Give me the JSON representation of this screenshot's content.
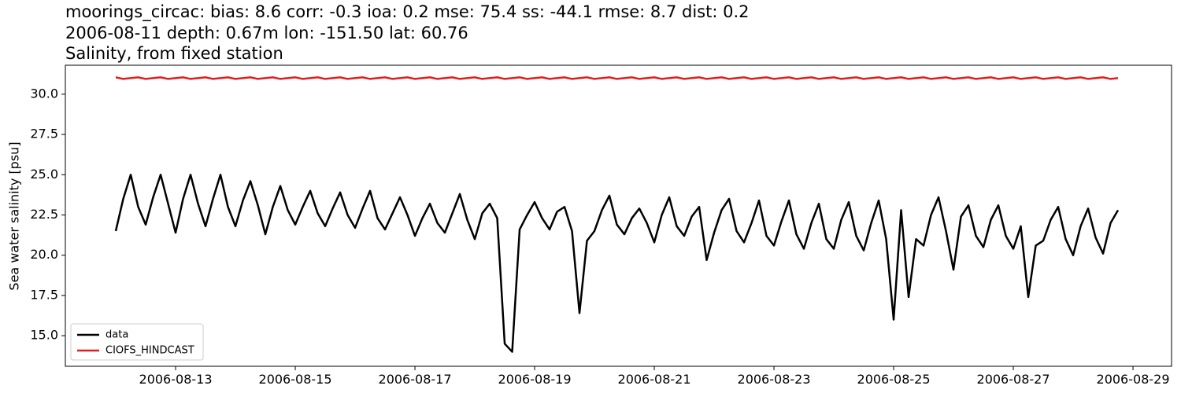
{
  "chart_data": {
    "type": "line",
    "title": "moorings_circac: bias: 8.6  corr: -0.3  ioa: 0.2  mse: 75.4  ss: -44.1  rmse: 8.7  dist: 0.2",
    "subtitle": "2006-08-11 depth: 0.67m lon: -151.50 lat: 60.76",
    "subtitle2": "Salinity, from fixed station",
    "y_label": "Sea water salinity [psu]",
    "legend": "lower left",
    "x": [
      "2006-08-12T00:00",
      "2006-08-12T03:00",
      "2006-08-12T06:00",
      "2006-08-12T09:00",
      "2006-08-12T12:00",
      "2006-08-12T15:00",
      "2006-08-12T18:00",
      "2006-08-12T21:00",
      "2006-08-13T00:00",
      "2006-08-13T03:00",
      "2006-08-13T06:00",
      "2006-08-13T09:00",
      "2006-08-13T12:00",
      "2006-08-13T15:00",
      "2006-08-13T18:00",
      "2006-08-13T21:00",
      "2006-08-14T00:00",
      "2006-08-14T03:00",
      "2006-08-14T06:00",
      "2006-08-14T09:00",
      "2006-08-14T12:00",
      "2006-08-14T15:00",
      "2006-08-14T18:00",
      "2006-08-14T21:00",
      "2006-08-15T00:00",
      "2006-08-15T03:00",
      "2006-08-15T06:00",
      "2006-08-15T09:00",
      "2006-08-15T12:00",
      "2006-08-15T15:00",
      "2006-08-15T18:00",
      "2006-08-15T21:00",
      "2006-08-16T00:00",
      "2006-08-16T03:00",
      "2006-08-16T06:00",
      "2006-08-16T09:00",
      "2006-08-16T12:00",
      "2006-08-16T15:00",
      "2006-08-16T18:00",
      "2006-08-16T21:00",
      "2006-08-17T00:00",
      "2006-08-17T03:00",
      "2006-08-17T06:00",
      "2006-08-17T09:00",
      "2006-08-17T12:00",
      "2006-08-17T15:00",
      "2006-08-17T18:00",
      "2006-08-17T21:00",
      "2006-08-18T00:00",
      "2006-08-18T03:00",
      "2006-08-18T06:00",
      "2006-08-18T09:00",
      "2006-08-18T12:00",
      "2006-08-18T15:00",
      "2006-08-18T18:00",
      "2006-08-18T21:00",
      "2006-08-19T00:00",
      "2006-08-19T03:00",
      "2006-08-19T06:00",
      "2006-08-19T09:00",
      "2006-08-19T12:00",
      "2006-08-19T15:00",
      "2006-08-19T18:00",
      "2006-08-19T21:00",
      "2006-08-20T00:00",
      "2006-08-20T03:00",
      "2006-08-20T06:00",
      "2006-08-20T09:00",
      "2006-08-20T12:00",
      "2006-08-20T15:00",
      "2006-08-20T18:00",
      "2006-08-20T21:00",
      "2006-08-21T00:00",
      "2006-08-21T03:00",
      "2006-08-21T06:00",
      "2006-08-21T09:00",
      "2006-08-21T12:00",
      "2006-08-21T15:00",
      "2006-08-21T18:00",
      "2006-08-21T21:00",
      "2006-08-22T00:00",
      "2006-08-22T03:00",
      "2006-08-22T06:00",
      "2006-08-22T09:00",
      "2006-08-22T12:00",
      "2006-08-22T15:00",
      "2006-08-22T18:00",
      "2006-08-22T21:00",
      "2006-08-23T00:00",
      "2006-08-23T03:00",
      "2006-08-23T06:00",
      "2006-08-23T09:00",
      "2006-08-23T12:00",
      "2006-08-23T15:00",
      "2006-08-23T18:00",
      "2006-08-23T21:00",
      "2006-08-24T00:00",
      "2006-08-24T03:00",
      "2006-08-24T06:00",
      "2006-08-24T09:00",
      "2006-08-24T12:00",
      "2006-08-24T15:00",
      "2006-08-24T18:00",
      "2006-08-24T21:00",
      "2006-08-25T00:00",
      "2006-08-25T03:00",
      "2006-08-25T06:00",
      "2006-08-25T09:00",
      "2006-08-25T12:00",
      "2006-08-25T15:00",
      "2006-08-25T18:00",
      "2006-08-25T21:00",
      "2006-08-26T00:00",
      "2006-08-26T03:00",
      "2006-08-26T06:00",
      "2006-08-26T09:00",
      "2006-08-26T12:00",
      "2006-08-26T15:00",
      "2006-08-26T18:00",
      "2006-08-26T21:00",
      "2006-08-27T00:00",
      "2006-08-27T03:00",
      "2006-08-27T06:00",
      "2006-08-27T09:00",
      "2006-08-27T12:00",
      "2006-08-27T15:00",
      "2006-08-27T18:00",
      "2006-08-27T21:00",
      "2006-08-28T00:00",
      "2006-08-28T03:00",
      "2006-08-28T06:00",
      "2006-08-28T09:00",
      "2006-08-28T12:00",
      "2006-08-28T15:00",
      "2006-08-28T18:00"
    ],
    "series": [
      {
        "name": "data",
        "color": "#000000",
        "values": [
          21.5,
          23.5,
          25.0,
          23.0,
          21.9,
          23.6,
          25.0,
          23.2,
          21.4,
          23.5,
          25.0,
          23.2,
          21.8,
          23.5,
          25.0,
          23.0,
          21.8,
          23.4,
          24.6,
          23.1,
          21.3,
          23.0,
          24.3,
          22.8,
          21.9,
          23.0,
          24.0,
          22.6,
          21.8,
          22.9,
          23.9,
          22.5,
          21.7,
          22.9,
          24.0,
          22.3,
          21.6,
          22.6,
          23.6,
          22.5,
          21.2,
          22.3,
          23.2,
          22.0,
          21.4,
          22.6,
          23.8,
          22.2,
          21.0,
          22.6,
          23.2,
          22.3,
          14.5,
          14.0,
          21.6,
          22.5,
          23.3,
          22.3,
          21.6,
          22.7,
          23.0,
          21.5,
          16.4,
          20.9,
          21.5,
          22.8,
          23.7,
          21.9,
          21.3,
          22.3,
          22.9,
          22.0,
          20.8,
          22.5,
          23.6,
          21.8,
          21.2,
          22.4,
          23.0,
          19.7,
          21.4,
          22.8,
          23.5,
          21.5,
          20.8,
          22.0,
          23.4,
          21.2,
          20.6,
          22.1,
          23.4,
          21.3,
          20.4,
          22.0,
          23.2,
          21.0,
          20.4,
          22.2,
          23.3,
          21.2,
          20.3,
          22.0,
          23.4,
          21.0,
          16.0,
          22.8,
          17.4,
          21.0,
          20.6,
          22.5,
          23.6,
          21.5,
          19.1,
          22.4,
          23.1,
          21.2,
          20.5,
          22.2,
          23.1,
          21.2,
          20.4,
          21.8,
          17.4,
          20.6,
          20.9,
          22.2,
          23.0,
          21.0,
          20.0,
          21.8,
          22.9,
          21.1,
          20.1,
          22.0,
          22.8
        ]
      },
      {
        "name": "CIOFS_HINDCAST",
        "color": "#e41a1c",
        "values": [
          31.05,
          30.95,
          31.0,
          31.05,
          30.95,
          31.0,
          31.05,
          30.95,
          31.0,
          31.05,
          30.95,
          31.0,
          31.05,
          30.95,
          31.0,
          31.05,
          30.95,
          31.0,
          31.05,
          30.95,
          31.0,
          31.05,
          30.95,
          31.0,
          31.05,
          30.95,
          31.0,
          31.05,
          30.95,
          31.0,
          31.05,
          30.95,
          31.0,
          31.05,
          30.95,
          31.0,
          31.05,
          30.95,
          31.0,
          31.05,
          30.95,
          31.0,
          31.05,
          30.95,
          31.0,
          31.05,
          30.95,
          31.0,
          31.05,
          30.95,
          31.0,
          31.05,
          30.95,
          31.0,
          31.05,
          30.95,
          31.0,
          31.05,
          30.95,
          31.0,
          31.05,
          30.95,
          31.0,
          31.05,
          30.95,
          31.0,
          31.05,
          30.95,
          31.0,
          31.05,
          30.95,
          31.0,
          31.05,
          30.95,
          31.0,
          31.05,
          30.95,
          31.0,
          31.05,
          30.95,
          31.0,
          31.05,
          30.95,
          31.0,
          31.05,
          30.95,
          31.0,
          31.05,
          30.95,
          31.0,
          31.05,
          30.95,
          31.0,
          31.05,
          30.95,
          31.0,
          31.05,
          30.95,
          31.0,
          31.05,
          30.95,
          31.0,
          31.05,
          30.95,
          31.0,
          31.05,
          30.95,
          31.0,
          31.05,
          30.95,
          31.0,
          31.05,
          30.95,
          31.0,
          31.05,
          30.95,
          31.0,
          31.05,
          30.95,
          31.0,
          31.05,
          30.95,
          31.0,
          31.05,
          30.95,
          31.0,
          31.05,
          30.95,
          31.0,
          31.05,
          30.95,
          31.0,
          31.05,
          30.95,
          31.0
        ]
      }
    ],
    "xlim": [
      "2006-08-11T03:47",
      "2006-08-29T15:28"
    ],
    "xticks": [
      "2006-08-13",
      "2006-08-15",
      "2006-08-17",
      "2006-08-19",
      "2006-08-21",
      "2006-08-23",
      "2006-08-25",
      "2006-08-27",
      "2006-08-29"
    ],
    "ylim": [
      13.1,
      31.8
    ],
    "yticks": [
      {
        "value": 15,
        "label": "15.0"
      },
      17.5,
      {
        "value": 20,
        "label": "20.0"
      },
      22.5,
      {
        "value": 25,
        "label": "25.0"
      },
      27.5,
      {
        "value": 30,
        "label": "30.0"
      }
    ],
    "grid": false
  }
}
